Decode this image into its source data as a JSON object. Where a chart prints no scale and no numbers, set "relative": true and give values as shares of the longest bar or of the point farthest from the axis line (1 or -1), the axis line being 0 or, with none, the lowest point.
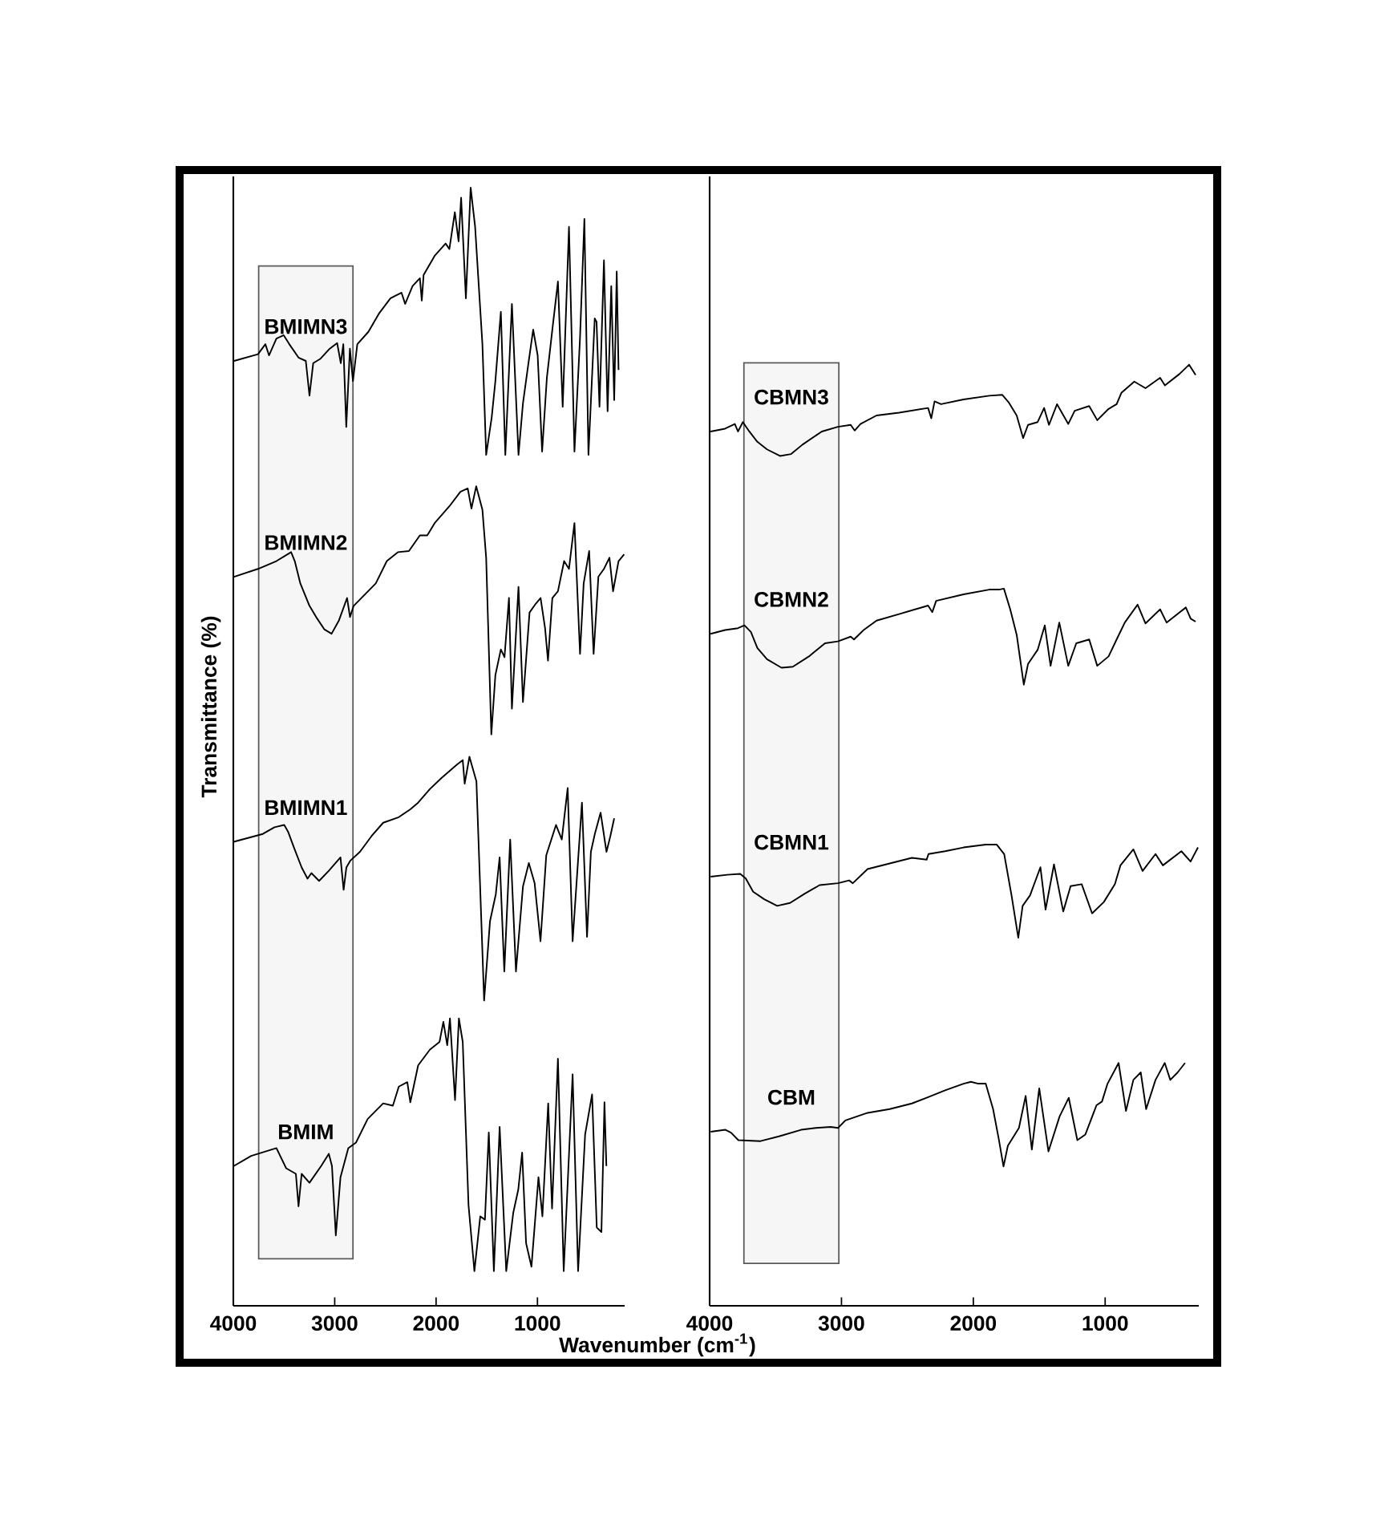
{
  "chart_data": [
    {
      "type": "line",
      "relative": true,
      "ylabel": "Transmittance (%)",
      "xlabel": "Wavenumber (cm$^{-1}$)",
      "xlim": [
        4000,
        140
      ],
      "xticks": [
        4000,
        3000,
        2000,
        1000
      ],
      "bands": [
        {
          "axis": "x",
          "from": 3750,
          "to": 2820
        }
      ],
      "series": [
        {
          "name": "BMIMN3",
          "color": "#000000",
          "x": [
            3993,
            3757,
            3684,
            3648,
            3575,
            3503,
            3448,
            3357,
            3285,
            3249,
            3212,
            3140,
            3049,
            2976,
            2940,
            2915,
            2886,
            2850,
            2820,
            2777,
            2668,
            2559,
            2450,
            2341,
            2305,
            2232,
            2160,
            2141,
            2123,
            2014,
            1906,
            1869,
            1815,
            1778,
            1753,
            1706,
            1659,
            1615,
            1543,
            1506,
            1452,
            1415,
            1361,
            1317,
            1252,
            1187,
            1143,
            1089,
            1042,
            998,
            954,
            907,
            853,
            798,
            751,
            689,
            635,
            580,
            537,
            497,
            435,
            417,
            388,
            344,
            308,
            272,
            243,
            218,
            200
          ],
          "values": [
            0.845,
            0.851,
            0.86,
            0.85,
            0.865,
            0.868,
            0.86,
            0.848,
            0.845,
            0.814,
            0.843,
            0.847,
            0.856,
            0.861,
            0.843,
            0.86,
            0.786,
            0.856,
            0.827,
            0.86,
            0.871,
            0.888,
            0.901,
            0.906,
            0.896,
            0.912,
            0.919,
            0.899,
            0.922,
            0.939,
            0.95,
            0.945,
            0.978,
            0.952,
            0.991,
            0.901,
            1.0,
            0.965,
            0.86,
            0.761,
            0.794,
            0.827,
            0.889,
            0.761,
            0.896,
            0.761,
            0.807,
            0.843,
            0.873,
            0.85,
            0.764,
            0.83,
            0.873,
            0.916,
            0.804,
            0.965,
            0.764,
            0.866,
            0.972,
            0.761,
            0.883,
            0.88,
            0.804,
            0.935,
            0.8,
            0.912,
            0.81,
            0.925,
            0.837
          ]
        },
        {
          "name": "BMIMN2",
          "color": "#000000",
          "x": [
            3993,
            3757,
            3575,
            3466,
            3430,
            3394,
            3339,
            3249,
            3176,
            3103,
            3031,
            2958,
            2878,
            2849,
            2813,
            2704,
            2595,
            2486,
            2377,
            2268,
            2160,
            2087,
            2014,
            1869,
            1760,
            1688,
            1651,
            1604,
            1543,
            1506,
            1455,
            1415,
            1361,
            1325,
            1281,
            1252,
            1187,
            1143,
            1078,
            1016,
            969,
            925,
            896,
            853,
            798,
            737,
            689,
            635,
            580,
            544,
            490,
            446,
            399,
            344,
            290,
            254,
            200,
            145
          ],
          "values": [
            0.652,
            0.659,
            0.666,
            0.672,
            0.674,
            0.666,
            0.646,
            0.626,
            0.615,
            0.605,
            0.601,
            0.613,
            0.633,
            0.616,
            0.626,
            0.636,
            0.646,
            0.666,
            0.674,
            0.675,
            0.689,
            0.689,
            0.7,
            0.715,
            0.728,
            0.731,
            0.713,
            0.733,
            0.712,
            0.669,
            0.511,
            0.564,
            0.587,
            0.58,
            0.633,
            0.534,
            0.643,
            0.54,
            0.62,
            0.628,
            0.633,
            0.606,
            0.577,
            0.633,
            0.639,
            0.666,
            0.659,
            0.7,
            0.583,
            0.646,
            0.675,
            0.583,
            0.652,
            0.659,
            0.669,
            0.639,
            0.666,
            0.672
          ]
        },
        {
          "name": "BMIMN1",
          "color": "#000000",
          "x": [
            3996,
            3709,
            3594,
            3498,
            3460,
            3403,
            3326,
            3268,
            3230,
            3154,
            3058,
            2943,
            2912,
            2885,
            2847,
            2751,
            2637,
            2522,
            2368,
            2254,
            2177,
            2062,
            1947,
            1794,
            1737,
            1718,
            1671,
            1602,
            1526,
            1468,
            1411,
            1373,
            1327,
            1269,
            1212,
            1143,
            1085,
            1028,
            970,
            913,
            817,
            760,
            702,
            653,
            561,
            511,
            473,
            434,
            377,
            319,
            281,
            243
          ],
          "values": [
            0.415,
            0.422,
            0.428,
            0.43,
            0.424,
            0.41,
            0.392,
            0.382,
            0.387,
            0.38,
            0.389,
            0.401,
            0.372,
            0.392,
            0.398,
            0.406,
            0.42,
            0.432,
            0.437,
            0.444,
            0.45,
            0.462,
            0.472,
            0.484,
            0.488,
            0.467,
            0.491,
            0.469,
            0.273,
            0.344,
            0.368,
            0.401,
            0.299,
            0.417,
            0.299,
            0.375,
            0.396,
            0.378,
            0.326,
            0.403,
            0.43,
            0.417,
            0.463,
            0.326,
            0.45,
            0.33,
            0.406,
            0.422,
            0.441,
            0.406,
            0.42,
            0.436
          ]
        },
        {
          "name": "BMIM",
          "color": "#000000",
          "x": [
            3996,
            3824,
            3575,
            3479,
            3383,
            3357,
            3326,
            3249,
            3134,
            3058,
            3027,
            2989,
            2943,
            2866,
            2790,
            2675,
            2522,
            2426,
            2368,
            2284,
            2254,
            2177,
            2062,
            1966,
            1928,
            1890,
            1863,
            1813,
            1775,
            1737,
            1680,
            1622,
            1564,
            1518,
            1480,
            1430,
            1373,
            1308,
            1239,
            1189,
            1151,
            1112,
            1059,
            990,
            951,
            894,
            856,
            798,
            741,
            653,
            599,
            530,
            461,
            415,
            369,
            339,
            320
          ],
          "values": [
            0.125,
            0.134,
            0.141,
            0.123,
            0.118,
            0.089,
            0.118,
            0.11,
            0.125,
            0.136,
            0.125,
            0.063,
            0.115,
            0.141,
            0.146,
            0.167,
            0.181,
            0.179,
            0.196,
            0.2,
            0.182,
            0.215,
            0.229,
            0.236,
            0.254,
            0.233,
            0.257,
            0.184,
            0.257,
            0.236,
            0.09,
            0.031,
            0.08,
            0.077,
            0.155,
            0.031,
            0.16,
            0.031,
            0.083,
            0.104,
            0.137,
            0.056,
            0.035,
            0.115,
            0.08,
            0.181,
            0.087,
            0.221,
            0.031,
            0.207,
            0.031,
            0.153,
            0.189,
            0.07,
            0.066,
            0.182,
            0.125
          ]
        }
      ]
    },
    {
      "type": "line",
      "relative": true,
      "xlim": [
        4000,
        290
      ],
      "xticks": [
        4000,
        3000,
        2000,
        1000
      ],
      "bands": [
        {
          "axis": "x",
          "from": 3740,
          "to": 3020
        }
      ],
      "series": [
        {
          "name": "CBMN3",
          "color": "#000000",
          "x": [
            3993,
            3883,
            3809,
            3785,
            3748,
            3699,
            3638,
            3565,
            3467,
            3382,
            3296,
            3149,
            3027,
            2930,
            2900,
            2856,
            2734,
            2563,
            2343,
            2319,
            2294,
            2245,
            2074,
            1879,
            1781,
            1732,
            1671,
            1622,
            1585,
            1512,
            1463,
            1426,
            1365,
            1280,
            1231,
            1121,
            1060,
            974,
            913,
            877,
            779,
            694,
            583,
            547,
            437,
            363,
            314
          ],
          "values": [
            0.929,
            0.932,
            0.937,
            0.929,
            0.939,
            0.929,
            0.918,
            0.91,
            0.903,
            0.905,
            0.915,
            0.929,
            0.934,
            0.936,
            0.93,
            0.937,
            0.946,
            0.949,
            0.954,
            0.943,
            0.961,
            0.958,
            0.963,
            0.967,
            0.968,
            0.96,
            0.946,
            0.922,
            0.936,
            0.939,
            0.954,
            0.936,
            0.958,
            0.937,
            0.951,
            0.956,
            0.941,
            0.953,
            0.958,
            0.97,
            0.982,
            0.975,
            0.986,
            0.978,
            0.99,
            1.0,
            0.989
          ]
        },
        {
          "name": "CBMN2",
          "color": "#000000",
          "x": [
            3993,
            3883,
            3785,
            3736,
            3687,
            3638,
            3565,
            3455,
            3369,
            3247,
            3125,
            3027,
            2930,
            2905,
            2832,
            2734,
            2563,
            2343,
            2311,
            2282,
            2074,
            1879,
            1805,
            1768,
            1720,
            1671,
            1617,
            1585,
            1512,
            1458,
            1414,
            1348,
            1280,
            1219,
            1121,
            1060,
            974,
            913,
            851,
            754,
            694,
            583,
            534,
            388,
            351,
            314
          ],
          "values": [
            0.714,
            0.718,
            0.72,
            0.723,
            0.716,
            0.699,
            0.687,
            0.678,
            0.679,
            0.69,
            0.704,
            0.706,
            0.711,
            0.708,
            0.718,
            0.728,
            0.735,
            0.744,
            0.737,
            0.749,
            0.756,
            0.761,
            0.761,
            0.762,
            0.74,
            0.713,
            0.66,
            0.682,
            0.697,
            0.723,
            0.68,
            0.726,
            0.68,
            0.704,
            0.708,
            0.68,
            0.69,
            0.708,
            0.726,
            0.745,
            0.725,
            0.74,
            0.726,
            0.742,
            0.73,
            0.727
          ]
        },
        {
          "name": "CBMN1",
          "color": "#000000",
          "x": [
            3992,
            3866,
            3768,
            3726,
            3670,
            3586,
            3488,
            3390,
            3278,
            3166,
            3026,
            2942,
            2914,
            2802,
            2634,
            2466,
            2354,
            2340,
            2214,
            2074,
            1906,
            1822,
            1766,
            1710,
            1659,
            1626,
            1570,
            1491,
            1452,
            1388,
            1318,
            1262,
            1178,
            1099,
            1010,
            926,
            884,
            786,
            716,
            618,
            562,
            422,
            352,
            296
          ],
          "values": [
            0.456,
            0.458,
            0.459,
            0.454,
            0.44,
            0.432,
            0.425,
            0.428,
            0.438,
            0.447,
            0.449,
            0.452,
            0.449,
            0.464,
            0.47,
            0.476,
            0.474,
            0.48,
            0.483,
            0.487,
            0.49,
            0.49,
            0.48,
            0.436,
            0.391,
            0.425,
            0.436,
            0.466,
            0.421,
            0.469,
            0.419,
            0.446,
            0.448,
            0.417,
            0.429,
            0.448,
            0.468,
            0.485,
            0.462,
            0.48,
            0.468,
            0.483,
            0.472,
            0.487
          ]
        },
        {
          "name": "CBM",
          "color": "#000000",
          "x": [
            3992,
            3880,
            3838,
            3782,
            3614,
            3474,
            3306,
            3194,
            3082,
            3026,
            2970,
            2802,
            2634,
            2466,
            2354,
            2214,
            2074,
            2018,
            1962,
            1906,
            1850,
            1808,
            1771,
            1738,
            1654,
            1603,
            1556,
            1500,
            1430,
            1346,
            1276,
            1211,
            1150,
            1066,
            1024,
            982,
            898,
            842,
            786,
            730,
            689,
            618,
            548,
            506,
            450,
            394
          ],
          "values": [
            0.185,
            0.187,
            0.184,
            0.176,
            0.175,
            0.18,
            0.187,
            0.189,
            0.19,
            0.189,
            0.197,
            0.205,
            0.209,
            0.215,
            0.221,
            0.229,
            0.236,
            0.238,
            0.236,
            0.236,
            0.209,
            0.178,
            0.148,
            0.17,
            0.189,
            0.223,
            0.166,
            0.231,
            0.164,
            0.201,
            0.221,
            0.176,
            0.182,
            0.213,
            0.217,
            0.236,
            0.258,
            0.207,
            0.24,
            0.248,
            0.209,
            0.24,
            0.258,
            0.24,
            0.248,
            0.258
          ]
        }
      ]
    }
  ]
}
